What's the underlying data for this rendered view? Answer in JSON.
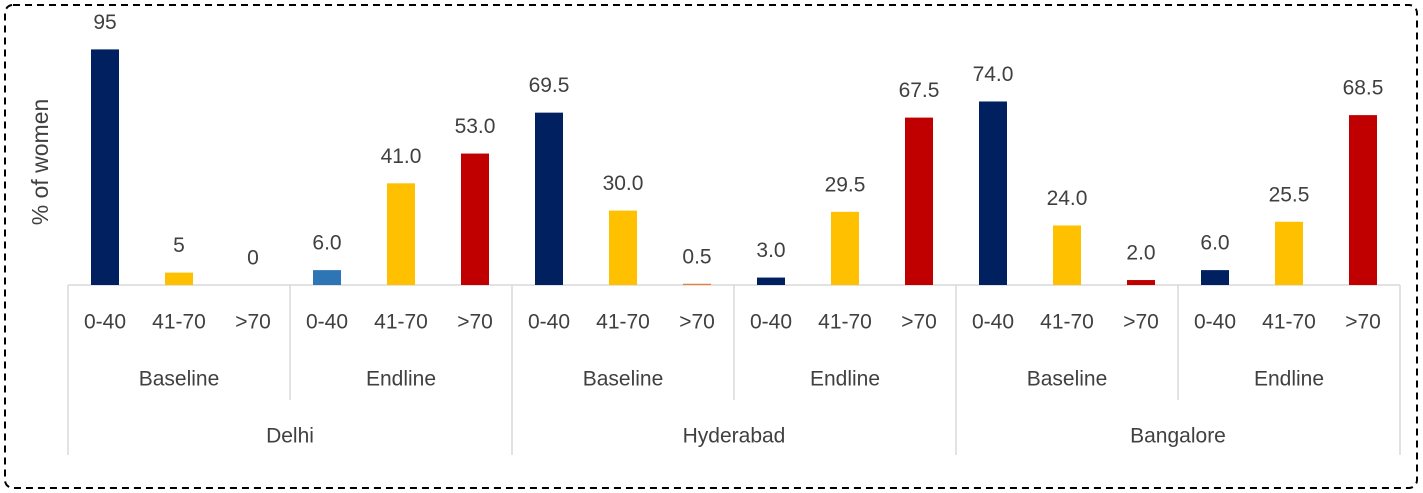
{
  "chart_data": {
    "type": "bar",
    "y_label": "% of women",
    "categories": [
      "0-40",
      "41-70",
      ">70",
      "0-40",
      "41-70",
      ">70",
      "0-40",
      "41-70",
      ">70",
      "0-40",
      "41-70",
      ">70",
      "0-40",
      "41-70",
      ">70",
      "0-40",
      "41-70",
      ">70"
    ],
    "phases": [
      "Baseline",
      "Endline",
      "Baseline",
      "Endline",
      "Baseline",
      "Endline"
    ],
    "cities": [
      "Delhi",
      "Hyderabad",
      "Bangalore"
    ],
    "values": [
      95,
      5,
      0,
      6,
      41,
      53,
      69.5,
      30,
      0.5,
      3,
      29.5,
      67.5,
      74,
      24,
      2,
      6,
      25.5,
      68.5
    ],
    "value_labels": [
      "95",
      "5",
      "0",
      "6.0",
      "41.0",
      "53.0",
      "69.5",
      "30.0",
      "0.5",
      "3.0",
      "29.5",
      "67.5",
      "74.0",
      "24.0",
      "2.0",
      "6.0",
      "25.5",
      "68.5"
    ],
    "colors": [
      "#002060",
      "#FFC000",
      "#C00000",
      "#2E75B6",
      "#FFC000",
      "#C00000",
      "#002060",
      "#FFC000",
      "#ED7D31",
      "#002060",
      "#FFC000",
      "#C00000",
      "#002060",
      "#FFC000",
      "#C00000",
      "#002060",
      "#FFC000",
      "#C00000"
    ],
    "ylim": [
      0,
      100
    ]
  }
}
